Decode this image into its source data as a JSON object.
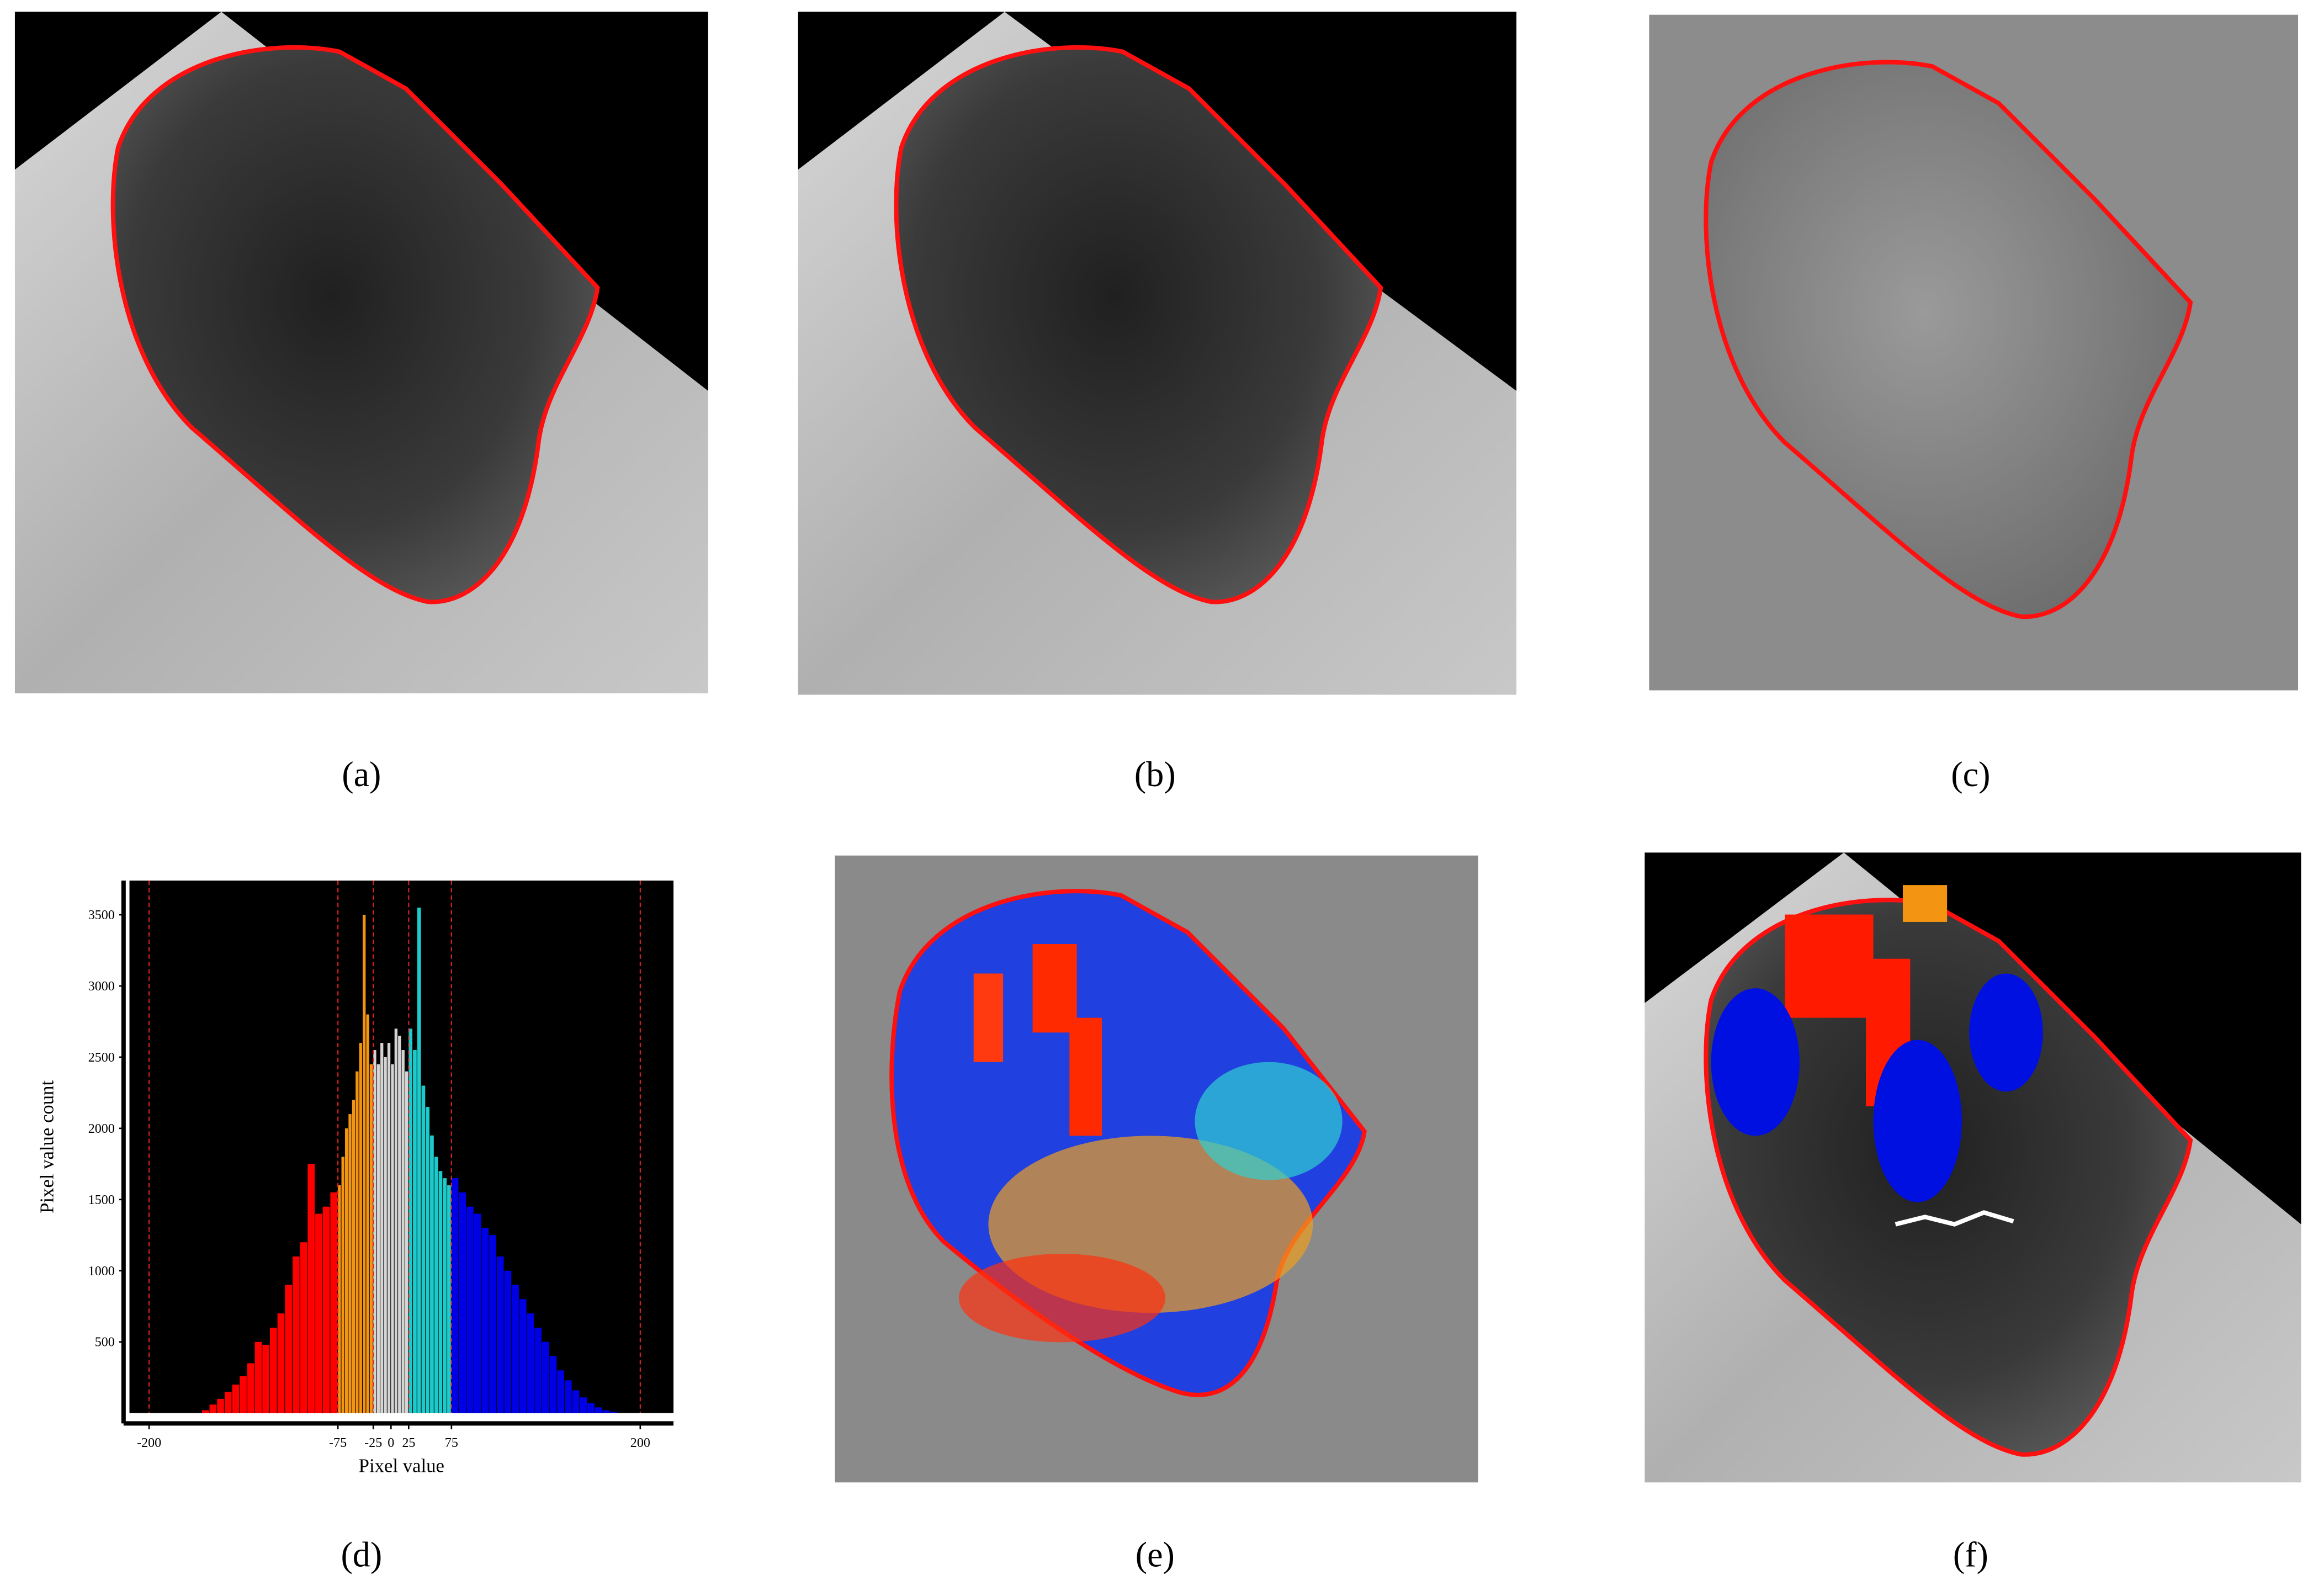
{
  "panels": [
    {
      "label": "(a)"
    },
    {
      "label": "(b)"
    },
    {
      "label": "(c)"
    },
    {
      "label": "(d)"
    },
    {
      "label": "(e)"
    },
    {
      "label": "(f)"
    }
  ],
  "chart_data": {
    "type": "histogram",
    "xlabel": "Pixel value",
    "ylabel": "Pixel value count",
    "bins": [
      -165,
      -160,
      -155,
      -150,
      -145,
      -140,
      -135,
      -130,
      -125,
      -120,
      -115,
      -110,
      -105,
      -100,
      -95,
      -90,
      -85,
      -80,
      -75,
      -70,
      -65,
      -60,
      -55,
      -50,
      -45,
      -40,
      -35,
      -30,
      -25,
      -20,
      -15,
      -10,
      -5,
      0,
      5,
      10,
      15,
      20,
      25,
      30,
      35,
      40,
      45,
      50,
      55,
      60,
      65,
      70,
      75,
      80,
      85,
      90,
      95,
      100,
      105,
      110,
      115,
      120,
      125,
      130,
      135,
      140,
      145,
      150,
      155,
      160,
      165,
      170,
      175,
      180,
      185
    ],
    "values": [
      20,
      60,
      100,
      150,
      200,
      260,
      350,
      500,
      480,
      600,
      700,
      900,
      1100,
      1200,
      1750,
      1400,
      1450,
      1550,
      1600,
      1800,
      2000,
      2100,
      2200,
      2400,
      2600,
      3500,
      2800,
      2450,
      2550,
      2450,
      2600,
      2500,
      2600,
      2450,
      2700,
      2650,
      2550,
      2400,
      2700,
      2550,
      3550,
      2300,
      2150,
      1950,
      1800,
      1700,
      1650,
      1600,
      1650,
      1550,
      1450,
      1400,
      1300,
      1250,
      1100,
      1000,
      900,
      800,
      700,
      600,
      500,
      400,
      300,
      230,
      160,
      110,
      70,
      40,
      20,
      10
    ],
    "xlim": [
      -213,
      222
    ],
    "ylim": [
      0,
      3740
    ],
    "xticks": [
      -200,
      -75,
      -25,
      0,
      25,
      75,
      200
    ],
    "yticks": [
      500,
      1000,
      1500,
      2000,
      2500,
      3000,
      3500
    ],
    "color_thresholds": [
      -75,
      -25,
      25,
      75
    ],
    "colors": [
      "#ff0000",
      "#f39512",
      "#d4d4d4",
      "#1ccccc",
      "#0000e6"
    ],
    "threshold_lines": [
      -200,
      -75,
      -25,
      25,
      75,
      200
    ],
    "threshold_color": "#e02020",
    "background": "#000000"
  }
}
